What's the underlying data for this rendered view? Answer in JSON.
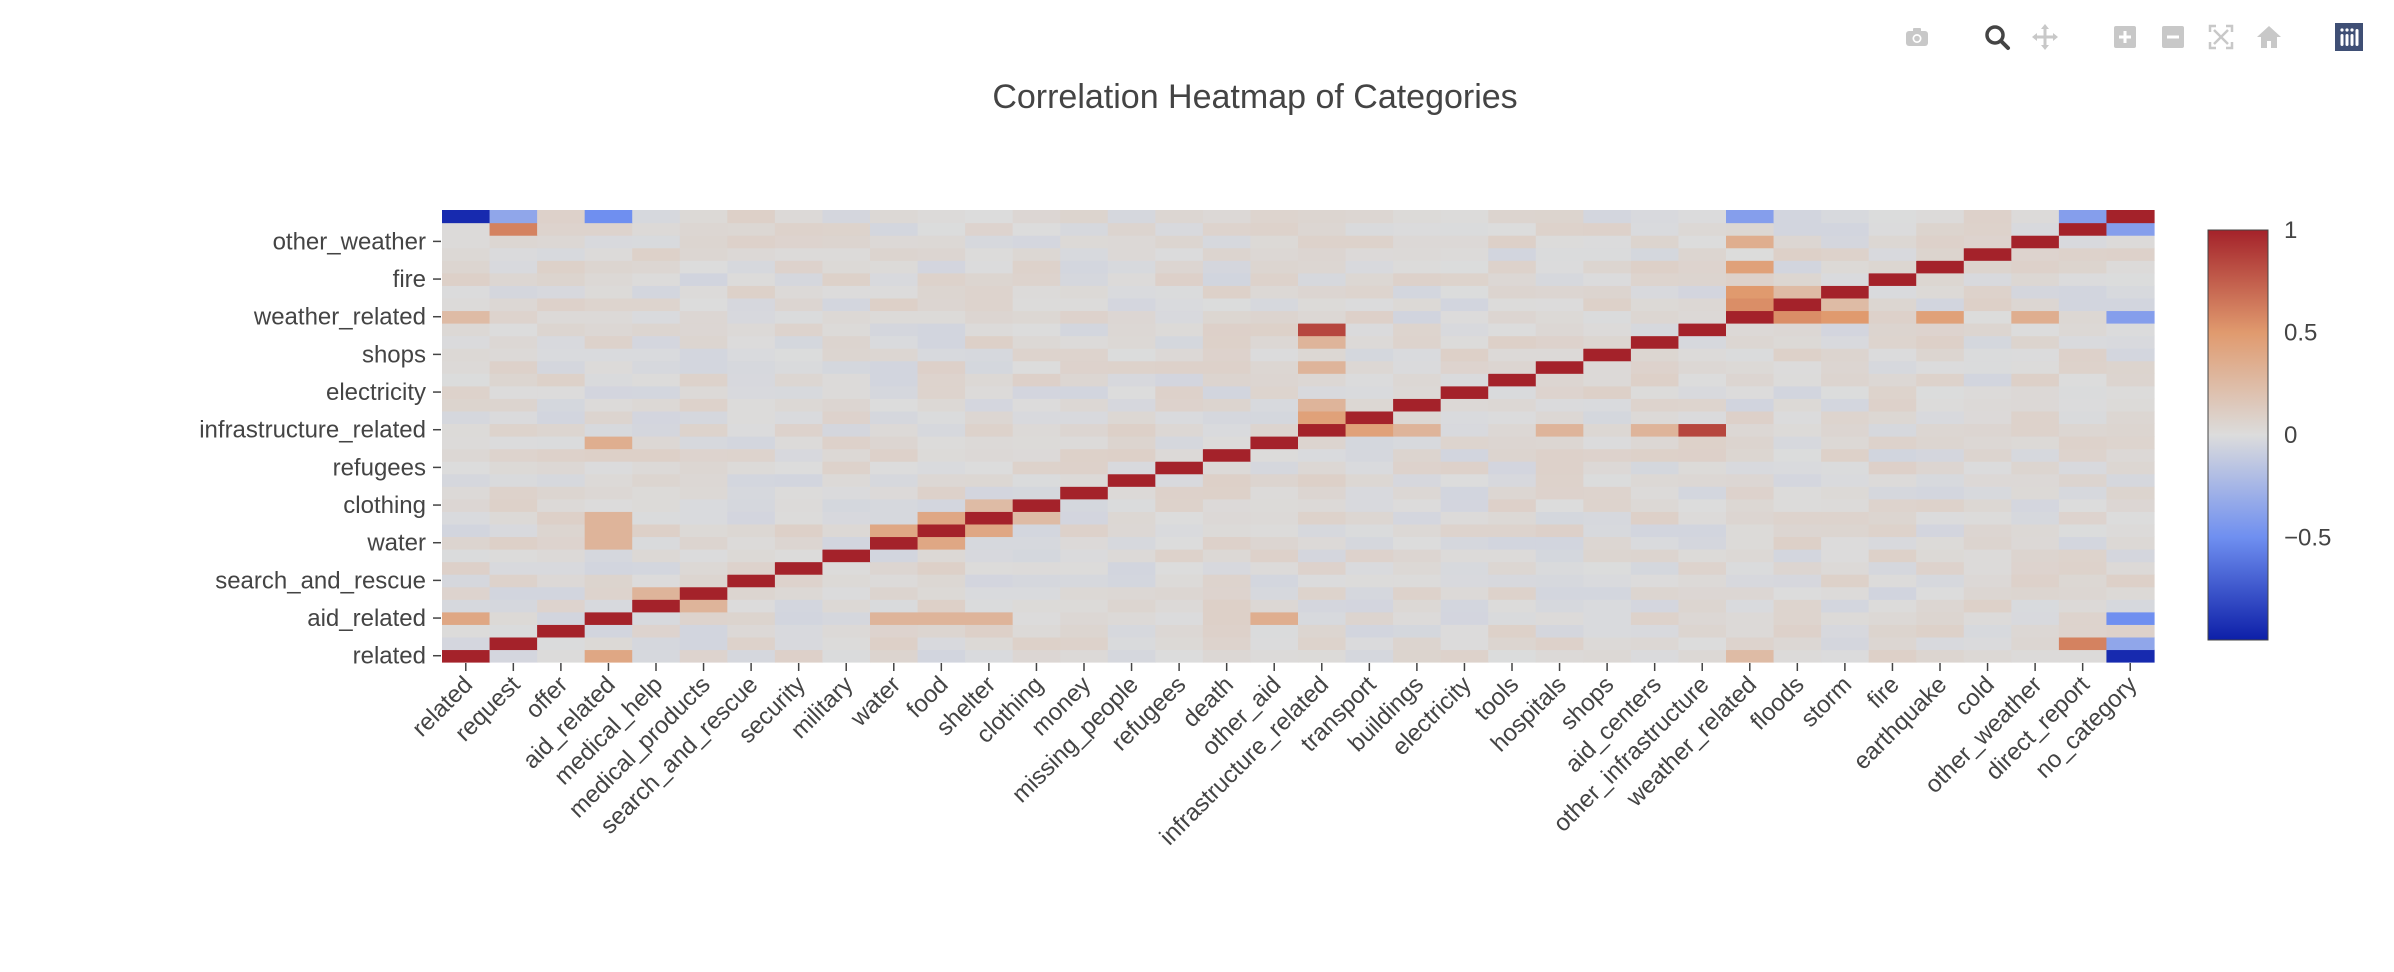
{
  "modebar": {
    "buttons": [
      {
        "name": "camera-icon",
        "color": "#c8c8c8"
      },
      {
        "name": "zoom-icon",
        "color": "#444444"
      },
      {
        "name": "pan-icon",
        "color": "#c8c8c8"
      },
      {
        "name": "zoom-in-icon",
        "color": "#c8c8c8"
      },
      {
        "name": "zoom-out-icon",
        "color": "#c8c8c8"
      },
      {
        "name": "autoscale-icon",
        "color": "#c8c8c8"
      },
      {
        "name": "reset-axes-icon",
        "color": "#c8c8c8"
      },
      {
        "name": "plotly-logo-icon",
        "color": "#3f4f75"
      }
    ]
  },
  "chart_data": {
    "type": "heatmap",
    "title": "Correlation Heatmap of Categories",
    "colorscale": "coolwarm",
    "zmin": -1,
    "zmax": 1,
    "colorbar_ticks": [
      1,
      0.5,
      0,
      -0.5
    ],
    "colorbar_tick_labels": [
      "1",
      "0.5",
      "0",
      "−0.5"
    ],
    "x_labels": [
      "related",
      "request",
      "offer",
      "aid_related",
      "medical_help",
      "medical_products",
      "search_and_rescue",
      "security",
      "military",
      "water",
      "food",
      "shelter",
      "clothing",
      "money",
      "missing_people",
      "refugees",
      "death",
      "other_aid",
      "infrastructure_related",
      "transport",
      "buildings",
      "electricity",
      "tools",
      "hospitals",
      "shops",
      "aid_centers",
      "other_infrastructure",
      "weather_related",
      "floods",
      "storm",
      "fire",
      "earthquake",
      "cold",
      "other_weather",
      "direct_report",
      "no_category"
    ],
    "y_tick_labels": [
      "related",
      "aid_related",
      "search_and_rescue",
      "water",
      "clothing",
      "refugees",
      "infrastructure_related",
      "electricity",
      "shops",
      "weather_related",
      "fire",
      "other_weather"
    ],
    "strong_pairs": [
      {
        "a": "related",
        "b": "no_category",
        "value": -0.95
      },
      {
        "a": "related",
        "b": "aid_related",
        "value": 0.4
      },
      {
        "a": "request",
        "b": "direct_report",
        "value": 0.6
      },
      {
        "a": "aid_related",
        "b": "no_category",
        "value": -0.5
      },
      {
        "a": "aid_related",
        "b": "other_aid",
        "value": 0.35
      },
      {
        "a": "aid_related",
        "b": "food",
        "value": 0.3
      },
      {
        "a": "aid_related",
        "b": "water",
        "value": 0.3
      },
      {
        "a": "aid_related",
        "b": "shelter",
        "value": 0.3
      },
      {
        "a": "medical_help",
        "b": "medical_products",
        "value": 0.3
      },
      {
        "a": "water",
        "b": "food",
        "value": 0.4
      },
      {
        "a": "food",
        "b": "shelter",
        "value": 0.4
      },
      {
        "a": "shelter",
        "b": "clothing",
        "value": 0.25
      },
      {
        "a": "infrastructure_related",
        "b": "other_infrastructure",
        "value": 0.85
      },
      {
        "a": "infrastructure_related",
        "b": "transport",
        "value": 0.45
      },
      {
        "a": "infrastructure_related",
        "b": "buildings",
        "value": 0.3
      },
      {
        "a": "infrastructure_related",
        "b": "hospitals",
        "value": 0.3
      },
      {
        "a": "infrastructure_related",
        "b": "aid_centers",
        "value": 0.3
      },
      {
        "a": "weather_related",
        "b": "floods",
        "value": 0.55
      },
      {
        "a": "weather_related",
        "b": "storm",
        "value": 0.5
      },
      {
        "a": "weather_related",
        "b": "earthquake",
        "value": 0.45
      },
      {
        "a": "weather_related",
        "b": "other_weather",
        "value": 0.35
      },
      {
        "a": "weather_related",
        "b": "no_category",
        "value": -0.4
      },
      {
        "a": "weather_related",
        "b": "related",
        "value": 0.25
      },
      {
        "a": "floods",
        "b": "storm",
        "value": 0.25
      },
      {
        "a": "direct_report",
        "b": "no_category",
        "value": -0.4
      },
      {
        "a": "request",
        "b": "no_category",
        "value": -0.35
      }
    ]
  }
}
